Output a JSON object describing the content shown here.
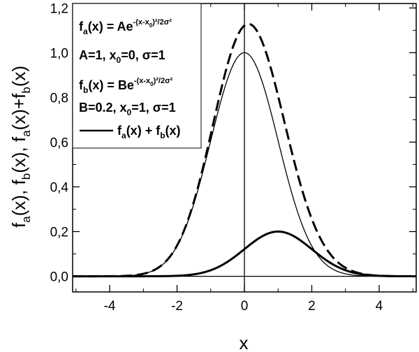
{
  "chart_data": {
    "type": "line",
    "xlabel": "x",
    "ylabel": "f_a(x), f_b(x), f_a(x)+f_b(x)",
    "xlim": [
      -5.1,
      5.1
    ],
    "ylim": [
      -0.07,
      1.22
    ],
    "x_ticks": [
      -4,
      -2,
      0,
      2,
      4
    ],
    "x_tick_labels": [
      "-4",
      "-2",
      "0",
      "2",
      "4"
    ],
    "y_ticks": [
      0,
      0.2,
      0.4,
      0.6,
      0.8,
      1.0,
      1.2
    ],
    "y_tick_labels": [
      "0,0",
      "0,2",
      "0,4",
      "0,6",
      "0,8",
      "1,0",
      "1,2"
    ],
    "grid": false,
    "legend_position": "top-left",
    "legend": {
      "fa_formula": "f_a(x) = Ae^{-(x-x_0)^2/2σ^2}",
      "fa_params": "A=1, x_0=0, σ=1",
      "fb_formula": "f_b(x) = Be^{-(x-x_0)^2/2σ^2}",
      "fb_params": "B=0.2, x_0=1, σ=1",
      "sum_label": "f_a(x) + f_b(x)"
    },
    "series": [
      {
        "name": "f_a(x)",
        "function": "gaussian",
        "amplitude": 1.0,
        "center": 0,
        "sigma": 1,
        "style": "thin solid"
      },
      {
        "name": "f_b(x)",
        "function": "gaussian",
        "amplitude": 0.2,
        "center": 1,
        "sigma": 1,
        "style": "thick solid"
      },
      {
        "name": "f_a(x) + f_b(x)",
        "function": "sum",
        "style": "thick dashed"
      }
    ]
  },
  "texts": {
    "fa_f": "f",
    "fa_a": "a",
    "fa_lhs": "(x) = Ae",
    "fa_exp": "-(x-x",
    "fa_exp_sub": "0",
    "fa_exp_tail": ")²/2σ²",
    "fa_params_a": "A=1, x",
    "fa_params_sub": "0",
    "fa_params_tail": "=0, σ=1",
    "fb_f": "f",
    "fb_b": "b",
    "fb_lhs": "(x) = Be",
    "fb_exp": "-(x-x",
    "fb_exp_sub": "0",
    "fb_exp_tail": ")²/2σ²",
    "fb_params_a": "B=0.2, x",
    "fb_params_sub": "0",
    "fb_params_tail": "=1, σ=1",
    "sum_f1": "f",
    "sum_a": "a",
    "sum_mid": "(x) + f",
    "sum_b": "b",
    "sum_end": "(x)",
    "y_f1": "f",
    "y_a1": "a",
    "y_t1": "(x), f",
    "y_b1": "b",
    "y_t2": "(x), f",
    "y_a2": "a",
    "y_t3": "(x)+f",
    "y_b2": "b",
    "y_t4": "(x)"
  }
}
